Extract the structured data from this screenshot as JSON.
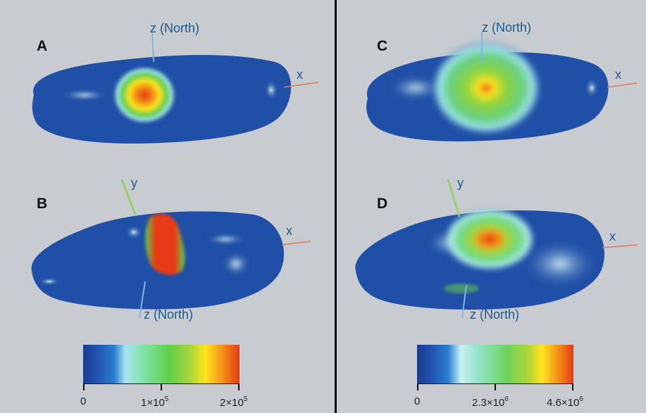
{
  "panels": {
    "A": {
      "letter": "A",
      "axis_z": "z (North)",
      "axis_x": "x"
    },
    "B": {
      "letter": "B",
      "axis_y": "y",
      "axis_x": "x",
      "axis_z": "z (North)"
    },
    "C": {
      "letter": "C",
      "axis_z": "z (North)",
      "axis_x": "x"
    },
    "D": {
      "letter": "D",
      "axis_y": "y",
      "axis_x": "x",
      "axis_z": "z (North)"
    }
  },
  "colorbars": {
    "left": {
      "ticks": [
        {
          "value": "0"
        },
        {
          "mantissa": "1×10",
          "exp": "5"
        },
        {
          "mantissa": "2×10",
          "exp": "5"
        }
      ]
    },
    "right": {
      "ticks": [
        {
          "value": "0"
        },
        {
          "mantissa": "2.3×10",
          "exp": "6"
        },
        {
          "mantissa": "4.6×10",
          "exp": "6"
        }
      ]
    }
  },
  "colors": {
    "background": "#c8ccd0",
    "body_blue": "#1f4fa6",
    "axis_label": "#1d5a8c",
    "divider": "#111111"
  }
}
